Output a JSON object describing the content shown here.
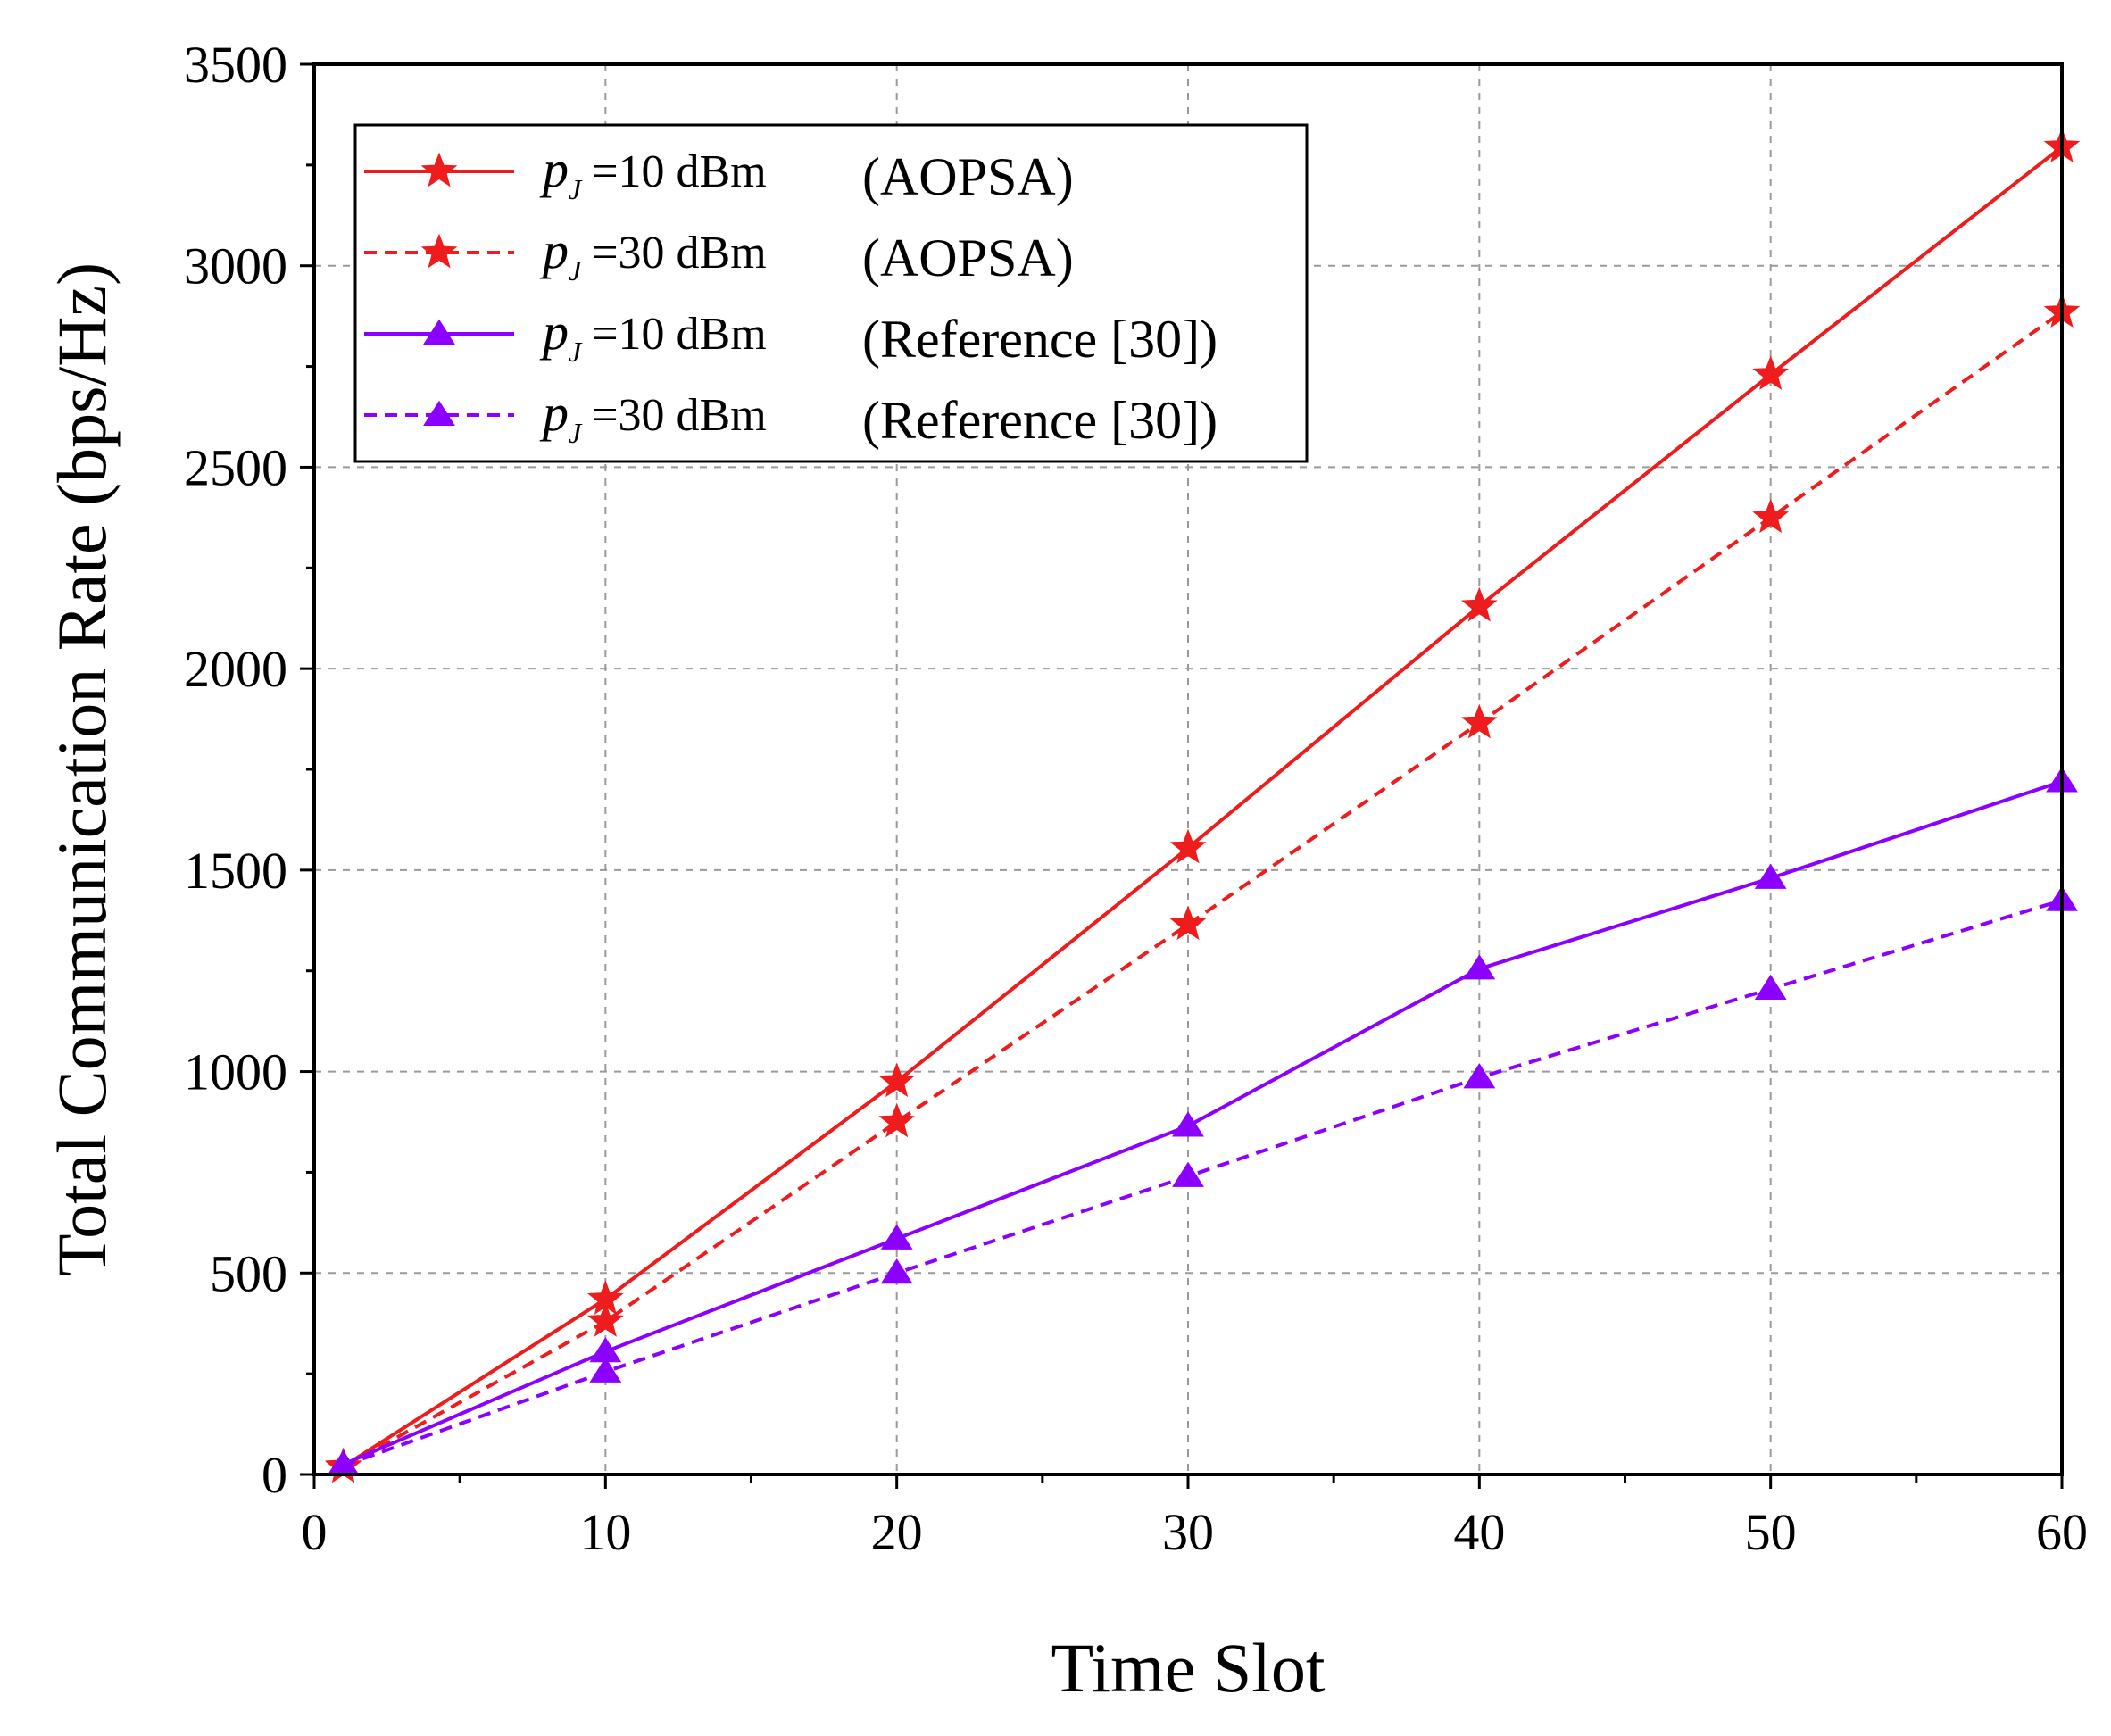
{
  "chart_data": {
    "type": "line",
    "title": "",
    "xlabel": "Time Slot",
    "ylabel": "Total Communication Rate (bps/Hz)",
    "xlim": [
      0,
      60
    ],
    "ylim": [
      0,
      3500
    ],
    "xticks": [
      0,
      10,
      20,
      30,
      40,
      50,
      60
    ],
    "yticks": [
      0,
      500,
      1000,
      1500,
      2000,
      2500,
      3000,
      3500
    ],
    "grid": true,
    "legend_position": "top-left",
    "x": [
      1,
      10,
      20,
      30,
      40,
      50,
      60
    ],
    "series": [
      {
        "name": "p_J = 10 dBm (AOPSA)",
        "legend_var": "p",
        "legend_sub": "J",
        "legend_value": "=10 dBm",
        "legend_method": "(AOPSA)",
        "color": "#ee1c1c",
        "line_style": "solid",
        "marker": "star",
        "values": [
          20,
          435,
          975,
          1555,
          2155,
          2730,
          3295
        ]
      },
      {
        "name": "p_J = 30 dBm (AOPSA)",
        "legend_var": "p",
        "legend_sub": "J",
        "legend_value": "=30 dBm",
        "legend_method": "(AOPSA)",
        "color": "#ee1c1c",
        "line_style": "dashed",
        "marker": "star",
        "values": [
          18,
          380,
          875,
          1365,
          1865,
          2375,
          2885
        ]
      },
      {
        "name": "p_J = 10 dBm (Reference [30])",
        "legend_var": "p",
        "legend_sub": "J",
        "legend_value": "=10 dBm",
        "legend_method": "(Reference [30])",
        "color": "#8b00ff",
        "line_style": "solid",
        "marker": "triangle",
        "values": [
          25,
          305,
          585,
          865,
          1255,
          1480,
          1720
        ]
      },
      {
        "name": "p_J = 30 dBm (Reference [30])",
        "legend_var": "p",
        "legend_sub": "J",
        "legend_value": "=30 dBm",
        "legend_method": "(Reference [30])",
        "color": "#8b00ff",
        "line_style": "dashed",
        "marker": "triangle",
        "values": [
          22,
          255,
          500,
          740,
          985,
          1205,
          1425
        ]
      }
    ]
  }
}
